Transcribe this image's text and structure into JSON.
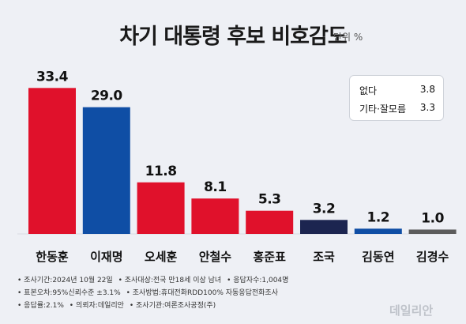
{
  "title": "차기 대통령 후보 비호감도",
  "unit": "단위 %",
  "others": [
    {
      "label": "없다",
      "value": "3.8"
    },
    {
      "label": "기타·잘모름",
      "value": "3.3"
    }
  ],
  "chart_data": {
    "type": "bar",
    "categories": [
      "한동훈",
      "이재명",
      "오세훈",
      "안철수",
      "홍준표",
      "조국",
      "김동연",
      "김경수"
    ],
    "values": [
      33.4,
      29.0,
      11.8,
      8.1,
      5.3,
      3.2,
      1.2,
      1.0
    ],
    "value_labels": [
      "33.4",
      "29.0",
      "11.8",
      "8.1",
      "5.3",
      "3.2",
      "1.2",
      "1.0"
    ],
    "colors": [
      "#e0112b",
      "#0f4ea5",
      "#e0112b",
      "#e0112b",
      "#e0112b",
      "#1c2550",
      "#0f4ea5",
      "#5c5c5c"
    ],
    "ylim": [
      0,
      34
    ]
  },
  "notes": {
    "line1": [
      "• 조사기간:2024년 10월 22일",
      "• 조사대상:전국 만18세 이상 남녀",
      "• 응답자수:1,004명"
    ],
    "line2": [
      "• 표본오차:95%신뢰수준 ±3.1%",
      "• 조사방법:휴대전화RDD100% 자동응답전화조사"
    ],
    "line3": [
      "• 응답률:2.1%",
      "• 의뢰자:데일리안",
      "• 조사기관:여론조사공정(주)"
    ]
  },
  "logo": "데일리안"
}
